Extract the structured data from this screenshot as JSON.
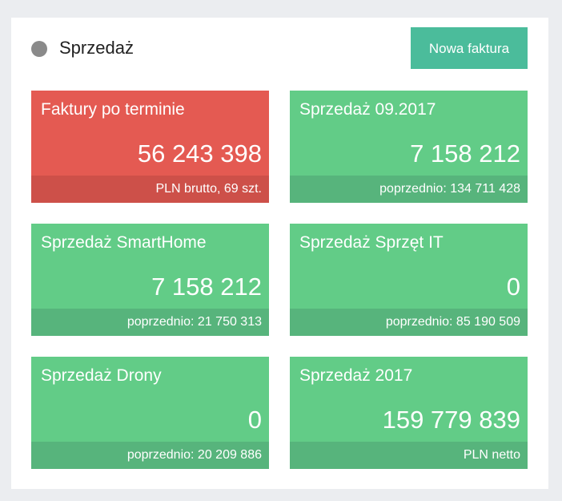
{
  "header": {
    "title": "Sprzedaż",
    "button_label": "Nowa faktura",
    "dot_color": "#8a8a8a",
    "button_color": "#4bbc9b"
  },
  "tiles": [
    {
      "title": "Faktury po terminie",
      "value": "56 243 398",
      "footer": "PLN brutto, 69 szt.",
      "color": "#e45a52"
    },
    {
      "title": "Sprzedaż 09.2017",
      "value": "7 158 212",
      "footer": "poprzednio: 134 711 428",
      "color": "#62cc87"
    },
    {
      "title": "Sprzedaż SmartHome",
      "value": "7 158 212",
      "footer": "poprzednio: 21 750 313",
      "color": "#62cc87"
    },
    {
      "title": "Sprzedaż Sprzęt IT",
      "value": "0",
      "footer": "poprzednio: 85 190 509",
      "color": "#62cc87"
    },
    {
      "title": "Sprzedaż Drony",
      "value": "0",
      "footer": "poprzednio: 20 209 886",
      "color": "#62cc87"
    },
    {
      "title": "Sprzedaż 2017",
      "value": "159 779 839",
      "footer": "PLN netto",
      "color": "#62cc87"
    }
  ]
}
